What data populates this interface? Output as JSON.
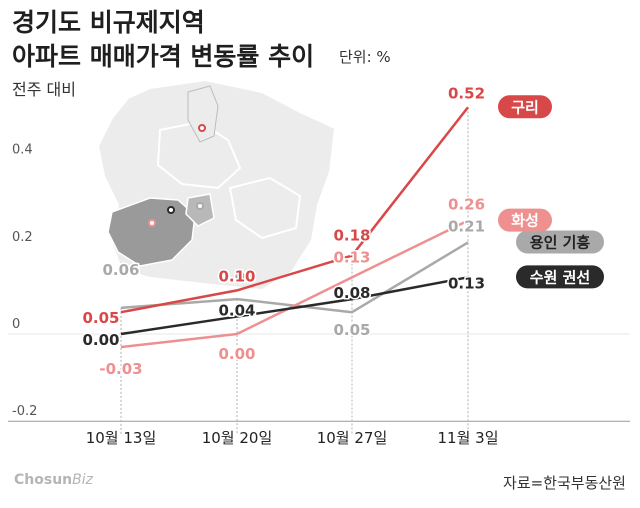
{
  "title_lines": [
    "경기도 비규제지역",
    "아파트 매매가격 변동률 추이"
  ],
  "unit_label": "단위: %",
  "subheading": "전주 대비",
  "brand": {
    "main": "Chosun",
    "suffix": "Biz"
  },
  "source": "자료=한국부동산원",
  "colors": {
    "guri": "#d94848",
    "hwaseong": "#ee9090",
    "yongin": "#a9a9a9",
    "suwon": "#2a2a2a",
    "map_fill": "#ececec",
    "map_highlight": "#9a9a9a"
  },
  "chart_data": {
    "type": "line",
    "categories": [
      "10월 13일",
      "10월 20일",
      "10월 27일",
      "11월 3일"
    ],
    "ylim": [
      -0.2,
      0.6
    ],
    "yticks": [
      -0.2,
      0,
      0.2,
      0.4
    ],
    "ytick_labels": [
      "-0.2",
      "0",
      "0.2",
      "0.4"
    ],
    "grid": false,
    "legend": "right-end labels",
    "series": [
      {
        "name": "용인 기흥",
        "color": "#a9a9a9",
        "values": [
          0.06,
          0.08,
          0.05,
          0.21
        ],
        "labels": [
          "0.06",
          "0.08",
          "0.05",
          "0.21"
        ]
      },
      {
        "name": "화성",
        "color": "#ee9090",
        "values": [
          -0.03,
          0.0,
          0.13,
          0.26
        ],
        "labels": [
          "-0.03",
          "0.00",
          "0.13",
          "0.26"
        ]
      },
      {
        "name": "수원 권선",
        "color": "#2a2a2a",
        "values": [
          0.0,
          0.04,
          0.08,
          0.13
        ],
        "labels": [
          "0.00",
          "0.04",
          "0.08",
          "0.13"
        ]
      },
      {
        "name": "구리",
        "color": "#d94848",
        "values": [
          0.05,
          0.1,
          0.18,
          0.52
        ],
        "labels": [
          "0.05",
          "0.10",
          "0.18",
          "0.52"
        ]
      }
    ]
  }
}
